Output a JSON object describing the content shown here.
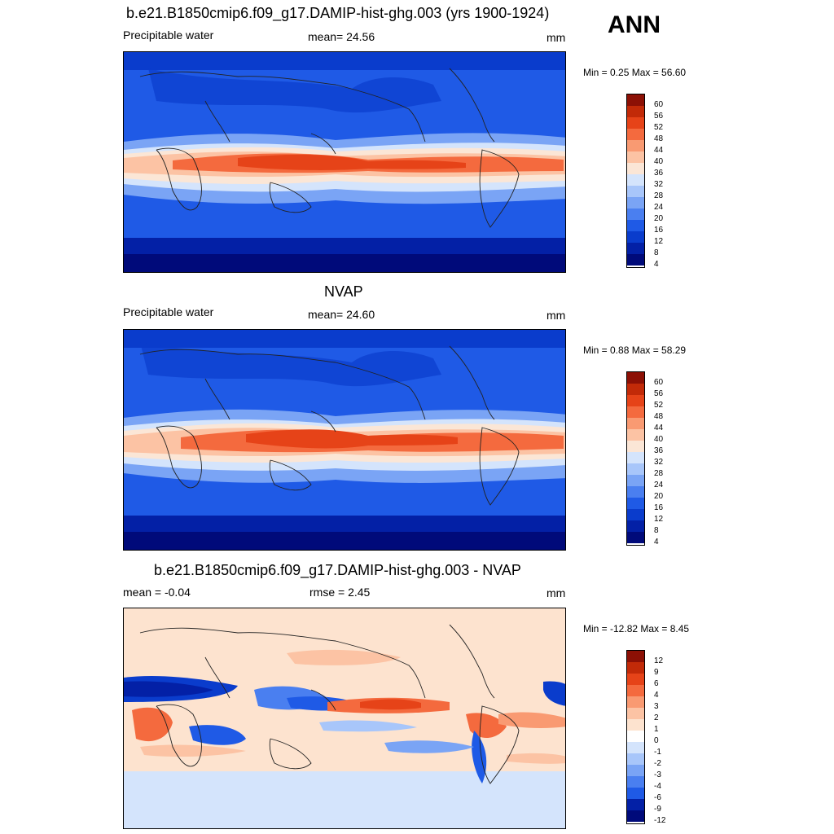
{
  "season": "ANN",
  "panels": [
    {
      "title": "b.e21.B1850cmip6.f09_g17.DAMIP-hist-ghg.003 (yrs 1900-1924)",
      "left": "Precipitable water",
      "center": "mean=  24.56",
      "units": "mm",
      "minmax": "Min =   0.25 Max =  56.60",
      "levels": [
        "60",
        "56",
        "52",
        "48",
        "44",
        "40",
        "36",
        "32",
        "28",
        "24",
        "20",
        "16",
        "12",
        "8",
        "4"
      ]
    },
    {
      "title": "NVAP",
      "left": "Precipitable water",
      "center": "mean=  24.60",
      "units": "mm",
      "minmax": "Min =   0.88 Max =  58.29",
      "levels": [
        "60",
        "56",
        "52",
        "48",
        "44",
        "40",
        "36",
        "32",
        "28",
        "24",
        "20",
        "16",
        "12",
        "8",
        "4"
      ]
    },
    {
      "title": "b.e21.B1850cmip6.f09_g17.DAMIP-hist-ghg.003 - NVAP",
      "left": "mean =  -0.04",
      "center": "rmse =   2.45",
      "units": "mm",
      "minmax": "Min = -12.82 Max =   8.45",
      "levels": [
        "12",
        "9",
        "6",
        "4",
        "3",
        "2",
        "1",
        "0",
        "-1",
        "-2",
        "-3",
        "-4",
        "-6",
        "-9",
        "-12"
      ]
    }
  ],
  "colors": {
    "field": [
      "#000a7a",
      "#0320a6",
      "#0a3ccc",
      "#1f5ae6",
      "#4a7ff0",
      "#7aa4f5",
      "#a8c6fa",
      "#d4e4fc",
      "#fbe6d6",
      "#fcc3a4",
      "#f99a72",
      "#f46a3e",
      "#e64318",
      "#c22a08",
      "#8c1005"
    ],
    "diff": [
      "#000a7a",
      "#0320a6",
      "#0a3ccc",
      "#1f5ae6",
      "#4a7ff0",
      "#7aa4f5",
      "#a8c6fa",
      "#d4e4fc",
      "#fde3cf",
      "#fcc3a4",
      "#f99a72",
      "#f46a3e",
      "#e64318",
      "#c22a08",
      "#8c1005"
    ],
    "land_outline": "#222222"
  },
  "icons": [
    "coastline-map-outline"
  ]
}
